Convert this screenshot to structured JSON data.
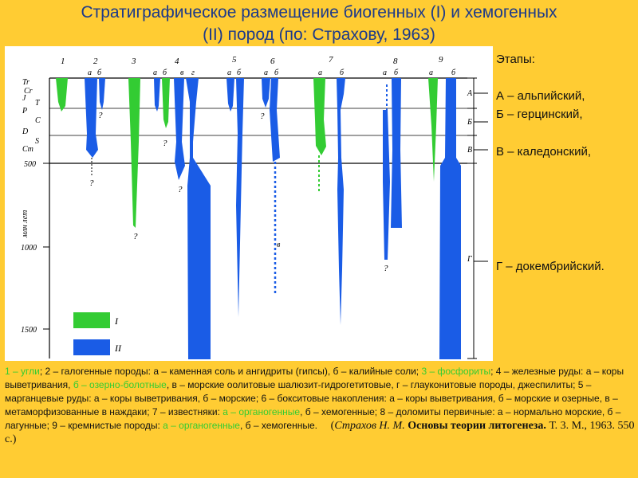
{
  "title": {
    "line1": "Стратиграфическое размещение биогенных (I) и хемогенных",
    "line2": "(II) пород (по: Страхову, 1963)"
  },
  "diagram": {
    "axis_label": "млн лет",
    "period_labels": [
      "Tr",
      "Cr",
      "J",
      "T",
      "P",
      "C",
      "D",
      "S",
      "Cm"
    ],
    "age_ticks": [
      "500",
      "1000",
      "1500"
    ],
    "column_numbers": [
      "1",
      "2",
      "3",
      "4",
      "5",
      "6",
      "7",
      "8",
      "9"
    ],
    "sub_labels": {
      "c2": [
        "а",
        "б"
      ],
      "c4": [
        "а",
        "б",
        "в",
        "г"
      ],
      "c5": [
        "а",
        "б"
      ],
      "c6": [
        "а",
        "б"
      ],
      "c7": [
        "а",
        "б"
      ],
      "c8": [
        "а",
        "б"
      ],
      "c9": [
        "а",
        "б"
      ]
    },
    "question_mark": "?",
    "c6_in_label": "в",
    "stage_letters": [
      "А",
      "Б",
      "В",
      "Г"
    ],
    "legend": [
      "I",
      "II"
    ],
    "colors": {
      "biogenic": "#33cc33",
      "chemogenic": "#1a5ce6"
    }
  },
  "stages": {
    "heading": "Этапы:",
    "a": "А – альпийский,",
    "b": "Б – герцинский,",
    "v": "В – каледонский,",
    "g": "Г – докембрийский."
  },
  "caption": {
    "p1": "1 – угли",
    "p2": "; 2 – галогенные породы: а – каменная соль и ангидриты (гипсы), б – калийные соли; ",
    "p3": "3 – фосфориты",
    "p4": "; 4 – железные руды: а – коры выветривания, ",
    "p5": "б – озерно-болотные",
    "p6": ", в – морские оолитовые шалюзит-гидрогетитовые, г – глауконитовые породы, джеспилиты; 5 – марганцевые руды: а – коры выветривания, б – морские; 6 – бокситовые накопления: а – коры выветривания, б – морские и озерные, в – метаморфизованные в наждаки; 7 – известняки: ",
    "p7": "а – органогенные",
    "p8": ", б – хемогенные; 8 – доломиты первичные: а – нормально морские, б – лагунные; 9 – кремнистые породы: ",
    "p9": "а – органогенные",
    "p10": ", б – хемогенные.",
    "cite_open": "(",
    "cite_author": "Страхов Н. М.",
    "cite_book": "Основы теории литогенеза.",
    "cite_rest": "Т. 3. М., 1963. 550 с.)"
  }
}
